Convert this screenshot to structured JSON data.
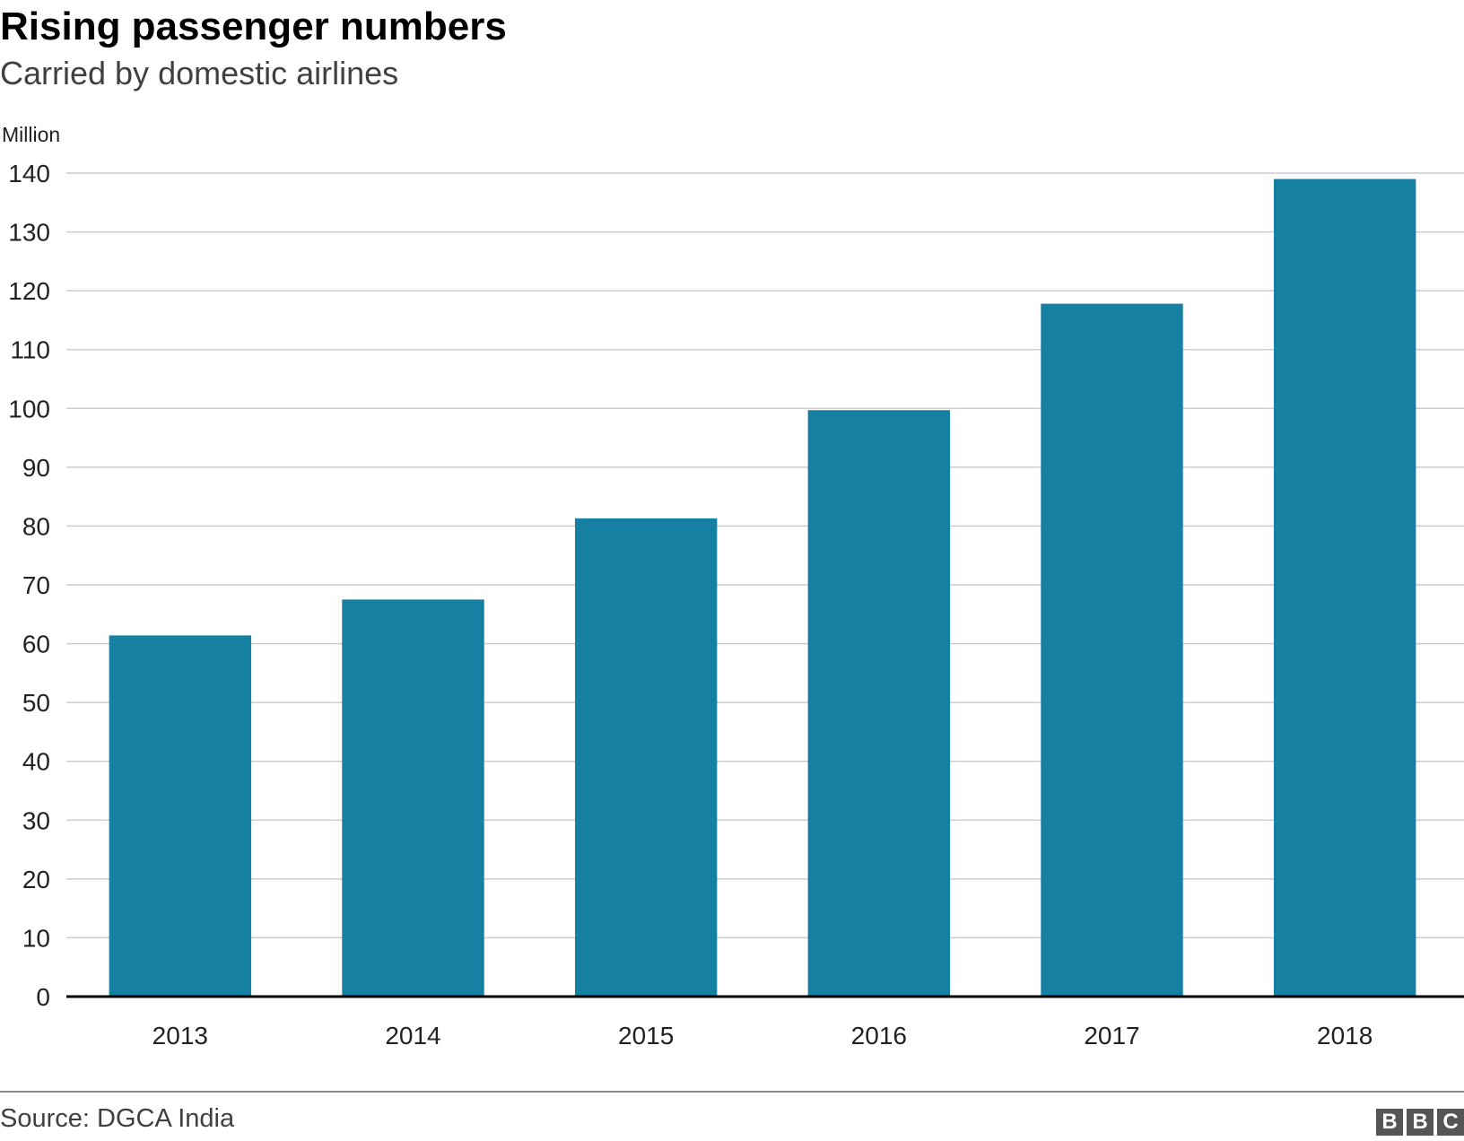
{
  "header": {
    "title": "Rising passenger numbers",
    "subtitle": "Carried by domestic airlines",
    "unit_label": "Million"
  },
  "footer": {
    "source": "Source: DGCA India",
    "logo": [
      "B",
      "B",
      "C"
    ]
  },
  "colors": {
    "bar": "#1580a1",
    "grid": "#cccccc",
    "baseline": "#000000",
    "text": "#222222"
  },
  "chart_data": {
    "type": "bar",
    "categories": [
      "2013",
      "2014",
      "2015",
      "2016",
      "2017",
      "2018"
    ],
    "values": [
      61.4,
      67.5,
      81.3,
      99.7,
      117.8,
      139.0
    ],
    "title": "Rising passenger numbers",
    "subtitle": "Carried by domestic airlines",
    "ylabel": "Million",
    "ylim": [
      0,
      140
    ],
    "yticks": [
      0,
      10,
      20,
      30,
      40,
      50,
      60,
      70,
      80,
      90,
      100,
      110,
      120,
      130,
      140
    ],
    "grid": true,
    "legend": "none"
  }
}
